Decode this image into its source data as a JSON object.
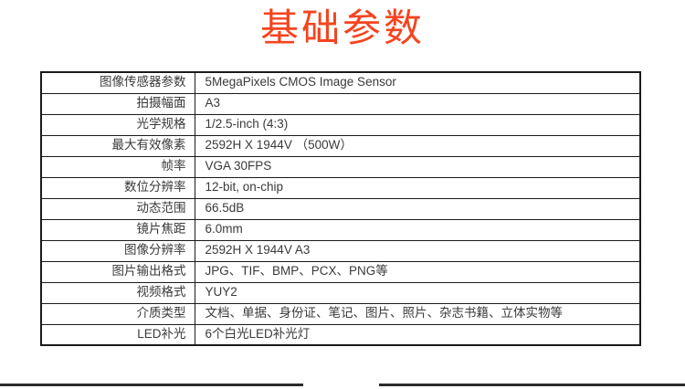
{
  "page": {
    "title": "基础参数"
  },
  "colors": {
    "title": "#f5441f",
    "table_border": "#1a1a1a",
    "table_text": "#3a3a3a",
    "footer_line": "#2b2b2b"
  },
  "table": {
    "rows": [
      {
        "label": "图像传感器参数",
        "value": "5MegaPixels CMOS Image Sensor"
      },
      {
        "label": "拍摄幅面",
        "value": "A3"
      },
      {
        "label": "光学规格",
        "value": "1/2.5-inch (4:3)"
      },
      {
        "label": "最大有效像素",
        "value": "2592H X 1944V （500W）"
      },
      {
        "label": "帧率",
        "value": "VGA 30FPS"
      },
      {
        "label": "数位分辨率",
        "value": "12-bit, on-chip"
      },
      {
        "label": "动态范围",
        "value": "66.5dB"
      },
      {
        "label": "镜片焦距",
        "value": "6.0mm"
      },
      {
        "label": "图像分辨率",
        "value": "2592H X 1944V A3"
      },
      {
        "label": "图片输出格式",
        "value": "JPG、TIF、BMP、PCX、PNG等"
      },
      {
        "label": "视频格式",
        "value": "YUY2"
      },
      {
        "label": "介质类型",
        "value": "文档、单据、身份证、笔记、图片、照片、杂志书籍、立体实物等"
      },
      {
        "label": "LED补光",
        "value": "6个白光LED补光灯"
      }
    ]
  }
}
